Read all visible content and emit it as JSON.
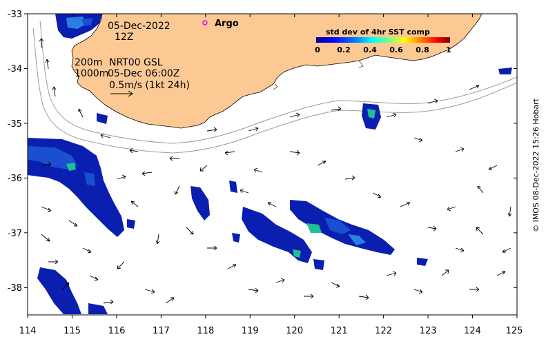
{
  "map": {
    "lon_ticks": [
      "114",
      "115",
      "116",
      "117",
      "118",
      "119",
      "120",
      "121",
      "122",
      "123",
      "124",
      "125"
    ],
    "lat_ticks": [
      "-33",
      "-34",
      "-35",
      "-36",
      "-37",
      "-38"
    ],
    "lon_range": [
      114,
      125
    ],
    "lat_range": [
      -38.5,
      -33
    ],
    "land_color": "#fcc995",
    "date_label": "05-Dec-2022",
    "time_label": "12Z",
    "contour_label_200": "200m",
    "contour_label_1000": "1000m",
    "current_source": "NRT00 GSL",
    "current_time": "05-Dec 06:00Z",
    "vector_scale_label": "0.5m/s (1kt 24h)",
    "argo_label": "Argo",
    "argo_color": "#e800e8",
    "credit": "© IMOS 08-Dec-2022 15:26 Hobart"
  },
  "colorbar": {
    "title": "std dev of 4hr SST comp",
    "tick_labels": [
      "0",
      "0.2",
      "0.4",
      "0.6",
      "0.8",
      "1"
    ],
    "colormap": [
      "#00008f",
      "#0000ff",
      "#0080ff",
      "#00ffff",
      "#80ff80",
      "#ffff00",
      "#ff8000",
      "#ff0000",
      "#800000"
    ]
  }
}
